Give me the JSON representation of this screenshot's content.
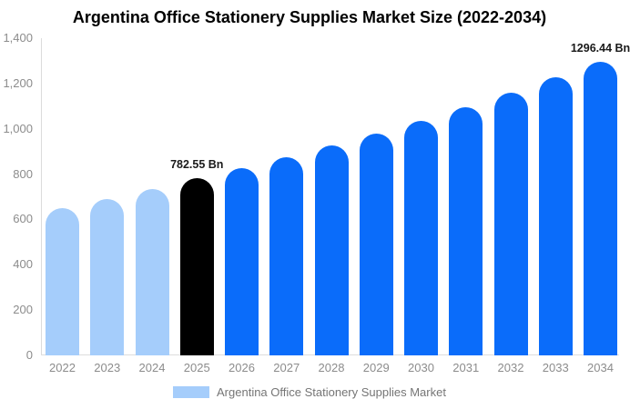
{
  "chart_data": {
    "type": "bar",
    "title": "Argentina Office Stationery Supplies Market Size (2022-2034)",
    "xlabel": "",
    "ylabel": "",
    "unit": "Bn",
    "categories": [
      "2022",
      "2023",
      "2024",
      "2025",
      "2026",
      "2027",
      "2028",
      "2029",
      "2030",
      "2031",
      "2032",
      "2033",
      "2034"
    ],
    "values": [
      650,
      691,
      735,
      782.55,
      828,
      875,
      926,
      979,
      1036,
      1096,
      1159,
      1226,
      1296.44
    ],
    "series_roles": [
      "historical",
      "historical",
      "historical",
      "current",
      "forecast",
      "forecast",
      "forecast",
      "forecast",
      "forecast",
      "forecast",
      "forecast",
      "forecast",
      "forecast"
    ],
    "point_labels": {
      "2025": "782.55 Bn",
      "2034": "1296.44 Bn"
    },
    "y_tick_labels": [
      "0",
      "200",
      "400",
      "600",
      "800",
      "1,000",
      "1,200",
      "1,400"
    ],
    "y_tick_values": [
      0,
      200,
      400,
      600,
      800,
      1000,
      1200,
      1400
    ],
    "ylim": [
      0,
      1400
    ],
    "grid": false,
    "legend": {
      "label": "Argentina Office Stationery Supplies Market",
      "position": "bottom",
      "swatch_color": "#a5cdfb"
    },
    "colors": {
      "historical": "#a5cdfb",
      "current": "#000000",
      "forecast": "#0a6cfa"
    }
  },
  "styles": {
    "axis_line_color": "#dcdcdc",
    "tick_text_color": "#8c8c8c",
    "point_label_color": "#1a1a1a",
    "legend_text_color": "#757575",
    "title_color": "#000000",
    "background": "#ffffff"
  }
}
